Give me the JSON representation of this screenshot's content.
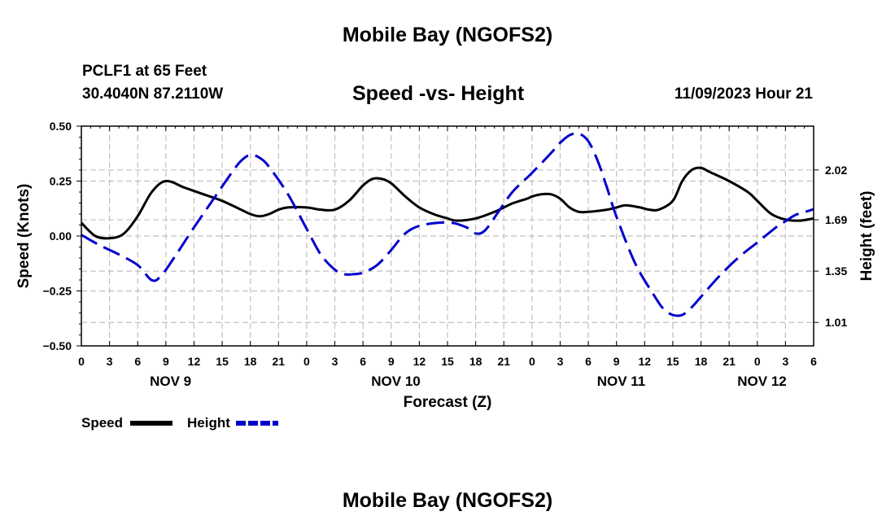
{
  "title": "Mobile Bay (NGOFS2)",
  "footer_title": "Mobile Bay (NGOFS2)",
  "station": {
    "line1": "PCLF1 at 65 Feet",
    "line2": "30.4040N  87.2110W"
  },
  "timestamp": "11/09/2023 Hour 21",
  "chart_data": {
    "type": "line",
    "title": "Speed -vs- Height",
    "xlabel": "Forecast (Z)",
    "ylabel_left": "Speed (Knots)",
    "ylabel_right": "Height (feet)",
    "x_unit": "forecast hours from 2023-11-09 00Z",
    "xlim": [
      0,
      78
    ],
    "ylim_left": [
      -0.5,
      0.5
    ],
    "ylim_right": [
      0.855,
      2.31
    ],
    "x_ticks": [
      {
        "x": 0,
        "label": "0"
      },
      {
        "x": 3,
        "label": "3"
      },
      {
        "x": 6,
        "label": "6"
      },
      {
        "x": 9,
        "label": "9"
      },
      {
        "x": 12,
        "label": "12"
      },
      {
        "x": 15,
        "label": "15"
      },
      {
        "x": 18,
        "label": "18"
      },
      {
        "x": 21,
        "label": "21"
      },
      {
        "x": 24,
        "label": "0"
      },
      {
        "x": 27,
        "label": "3"
      },
      {
        "x": 30,
        "label": "6"
      },
      {
        "x": 33,
        "label": "9"
      },
      {
        "x": 36,
        "label": "12"
      },
      {
        "x": 39,
        "label": "15"
      },
      {
        "x": 42,
        "label": "18"
      },
      {
        "x": 45,
        "label": "21"
      },
      {
        "x": 48,
        "label": "0"
      },
      {
        "x": 51,
        "label": "3"
      },
      {
        "x": 54,
        "label": "6"
      },
      {
        "x": 57,
        "label": "9"
      },
      {
        "x": 60,
        "label": "12"
      },
      {
        "x": 63,
        "label": "15"
      },
      {
        "x": 66,
        "label": "18"
      },
      {
        "x": 69,
        "label": "21"
      },
      {
        "x": 72,
        "label": "0"
      },
      {
        "x": 75,
        "label": "3"
      },
      {
        "x": 78,
        "label": "6"
      }
    ],
    "date_labels": [
      {
        "x": 9.5,
        "label": "NOV 9"
      },
      {
        "x": 33.5,
        "label": "NOV 10"
      },
      {
        "x": 57.5,
        "label": "NOV 11"
      },
      {
        "x": 72.5,
        "label": "NOV 12"
      }
    ],
    "y_ticks_left": [
      {
        "v": 0.5,
        "label": "0.50"
      },
      {
        "v": 0.25,
        "label": "0.25"
      },
      {
        "v": 0.0,
        "label": "0.00"
      },
      {
        "v": -0.25,
        "label": "−0.25"
      },
      {
        "v": -0.5,
        "label": "−0.50"
      }
    ],
    "y_ticks_right": [
      {
        "v": 2.02,
        "label": "2.02"
      },
      {
        "v": 1.69,
        "label": "1.69"
      },
      {
        "v": 1.35,
        "label": "1.35"
      },
      {
        "v": 1.01,
        "label": "1.01"
      }
    ],
    "legend": [
      {
        "name": "Speed",
        "color": "#000000",
        "style": "solid"
      },
      {
        "name": "Height",
        "color": "#0000cc",
        "style": "dashed"
      }
    ],
    "series": [
      {
        "name": "Speed",
        "axis": "left",
        "color": "#000000",
        "style": "solid",
        "x": [
          0,
          1.5,
          3,
          4.5,
          6,
          7.5,
          9,
          11,
          13,
          15,
          17,
          18,
          19,
          20,
          21,
          22,
          24,
          25.5,
          27,
          28.5,
          30,
          31,
          32,
          33,
          34.5,
          36,
          37.5,
          39,
          40,
          42,
          44,
          45,
          46,
          47.5,
          48,
          49,
          50,
          51,
          52,
          53,
          54,
          56,
          57,
          58,
          59.5,
          60.5,
          61.5,
          63,
          64,
          65,
          66,
          67,
          69,
          71,
          72,
          73.5,
          75,
          76.5,
          78
        ],
        "y": [
          0.06,
          0.0,
          -0.01,
          0.01,
          0.09,
          0.2,
          0.25,
          0.22,
          0.19,
          0.16,
          0.12,
          0.1,
          0.09,
          0.1,
          0.12,
          0.13,
          0.13,
          0.12,
          0.12,
          0.16,
          0.23,
          0.26,
          0.26,
          0.24,
          0.18,
          0.13,
          0.1,
          0.08,
          0.07,
          0.08,
          0.11,
          0.13,
          0.15,
          0.17,
          0.18,
          0.19,
          0.19,
          0.17,
          0.13,
          0.11,
          0.11,
          0.12,
          0.13,
          0.14,
          0.13,
          0.12,
          0.12,
          0.16,
          0.25,
          0.3,
          0.31,
          0.29,
          0.25,
          0.2,
          0.16,
          0.1,
          0.075,
          0.07,
          0.08
        ]
      },
      {
        "name": "Height",
        "axis": "right",
        "color": "#0000cc",
        "style": "dashed",
        "x": [
          0,
          2,
          4,
          6,
          7.5,
          8.5,
          10,
          12,
          14,
          16,
          17,
          18,
          19,
          20,
          22,
          24,
          25.5,
          27,
          28,
          29,
          30,
          31.5,
          33,
          34.5,
          36,
          38,
          39.5,
          41,
          42,
          43,
          44.5,
          46,
          48,
          50,
          51,
          52,
          53,
          54,
          55,
          56,
          57,
          59,
          61,
          62,
          63,
          64,
          65,
          66,
          68,
          70,
          72,
          74,
          75,
          76,
          77,
          78
        ],
        "y": [
          1.59,
          1.52,
          1.46,
          1.39,
          1.29,
          1.32,
          1.45,
          1.64,
          1.82,
          2.0,
          2.08,
          2.12,
          2.1,
          2.04,
          1.86,
          1.63,
          1.46,
          1.36,
          1.33,
          1.33,
          1.34,
          1.39,
          1.49,
          1.6,
          1.65,
          1.67,
          1.67,
          1.64,
          1.6,
          1.62,
          1.75,
          1.88,
          2.0,
          2.13,
          2.2,
          2.25,
          2.26,
          2.21,
          2.08,
          1.9,
          1.71,
          1.4,
          1.19,
          1.1,
          1.06,
          1.06,
          1.11,
          1.18,
          1.32,
          1.44,
          1.54,
          1.64,
          1.68,
          1.72,
          1.74,
          1.76
        ]
      }
    ]
  }
}
